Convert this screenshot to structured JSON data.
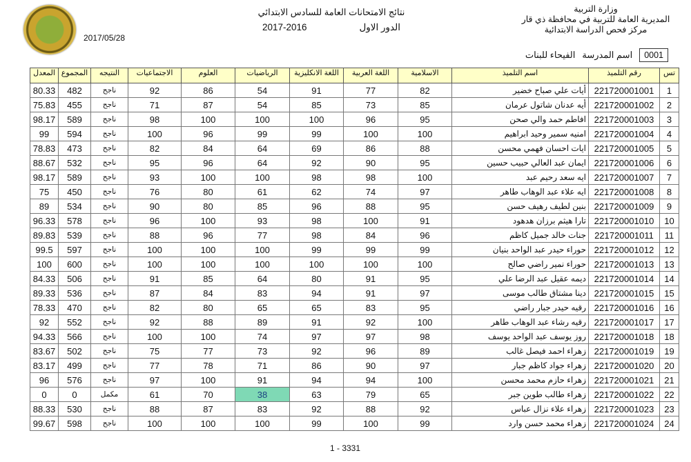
{
  "header": {
    "ministry_lines": [
      "وزارة التربية",
      "المديرية العامة للتربية في محافظة ذي قار",
      "مركز فحص الدراسة الابتدائية"
    ],
    "title": "نتائج الامتحانات  العامة للسادس الابتدائي",
    "round": "الدور الاول",
    "year": "2017-2016",
    "date": "2017/05/28",
    "school_code": "0001",
    "school_label": "اسم المدرسة",
    "school_name": "الفيحاء للبنات"
  },
  "columns": [
    "تس",
    "رقم التلميذ",
    "اسم التلميذ",
    "الاسلامية",
    "اللغة العربية",
    "اللغة الانكليزية",
    "الرياضيات",
    "العلوم",
    "الاجتماعيات",
    "النتيجه",
    "المجموع",
    "المعدل"
  ],
  "highlight_color": "#7fd9b5",
  "rows": [
    [
      "1",
      "221720001001",
      "أيات علي صباح خضير",
      "82",
      "77",
      "91",
      "54",
      "86",
      "92",
      "ناجح",
      "482",
      "80.33"
    ],
    [
      "2",
      "221720001002",
      "أيه عدنان شاتول عرمان",
      "85",
      "73",
      "85",
      "54",
      "87",
      "71",
      "ناجح",
      "455",
      "75.83"
    ],
    [
      "3",
      "221720001003",
      "افاطم حمد والي صحن",
      "95",
      "96",
      "100",
      "100",
      "100",
      "98",
      "ناجح",
      "589",
      "98.17"
    ],
    [
      "4",
      "221720001004",
      "امنيه سمير وحيد ابراهيم",
      "100",
      "100",
      "99",
      "99",
      "96",
      "100",
      "ناجح",
      "594",
      "99"
    ],
    [
      "5",
      "221720001005",
      "ايات احسان فهمي محسن",
      "88",
      "86",
      "69",
      "64",
      "84",
      "82",
      "ناجح",
      "473",
      "78.83"
    ],
    [
      "6",
      "221720001006",
      "ايمان عبد العالي حبيب حسين",
      "95",
      "90",
      "92",
      "64",
      "96",
      "95",
      "ناجح",
      "532",
      "88.67"
    ],
    [
      "7",
      "221720001007",
      "ايه سعد رحيم عبد",
      "100",
      "98",
      "98",
      "100",
      "100",
      "93",
      "ناجح",
      "589",
      "98.17"
    ],
    [
      "8",
      "221720001008",
      "ايه علاء  عبد الوهاب طاهر",
      "97",
      "74",
      "62",
      "61",
      "80",
      "76",
      "ناجح",
      "450",
      "75"
    ],
    [
      "9",
      "221720001009",
      "بنين لطيف رهيف حسن",
      "95",
      "88",
      "96",
      "85",
      "80",
      "90",
      "ناجح",
      "534",
      "89"
    ],
    [
      "10",
      "221720001010",
      "تارا هيثم برزان هدهود",
      "91",
      "100",
      "98",
      "93",
      "100",
      "96",
      "ناجح",
      "578",
      "96.33"
    ],
    [
      "11",
      "221720001011",
      "جنات خالد جميل كاظم",
      "96",
      "84",
      "98",
      "77",
      "96",
      "88",
      "ناجح",
      "539",
      "89.83"
    ],
    [
      "12",
      "221720001012",
      "حوراء حيدر عبد الواحد بنيان",
      "99",
      "99",
      "99",
      "100",
      "100",
      "100",
      "ناجح",
      "597",
      "99.5"
    ],
    [
      "13",
      "221720001013",
      "حوراء نمير راضي صالح",
      "100",
      "100",
      "100",
      "100",
      "100",
      "100",
      "ناجح",
      "600",
      "100"
    ],
    [
      "14",
      "221720001014",
      "ديمه عقيل عبد الرضا علي",
      "95",
      "91",
      "80",
      "64",
      "85",
      "91",
      "ناجح",
      "506",
      "84.33"
    ],
    [
      "15",
      "221720001015",
      "دينا مشتاق طالب موسى",
      "97",
      "91",
      "94",
      "83",
      "84",
      "87",
      "ناجح",
      "536",
      "89.33"
    ],
    [
      "16",
      "221720001016",
      "رقيه حيدر جبار راضي",
      "95",
      "83",
      "65",
      "65",
      "80",
      "82",
      "ناجح",
      "470",
      "78.33"
    ],
    [
      "17",
      "221720001017",
      "رقيه رشاء عبد الوهاب طاهر",
      "100",
      "92",
      "91",
      "89",
      "88",
      "92",
      "ناجح",
      "552",
      "92"
    ],
    [
      "18",
      "221720001018",
      "روز يوسف عبد الواحد يوسف",
      "98",
      "97",
      "97",
      "74",
      "100",
      "100",
      "ناجح",
      "566",
      "94.33"
    ],
    [
      "19",
      "221720001019",
      "زهراء احمد فيصل غالب",
      "89",
      "96",
      "92",
      "73",
      "77",
      "75",
      "ناجح",
      "502",
      "83.67"
    ],
    [
      "20",
      "221720001020",
      "زهراء جواد كاظم جبار",
      "97",
      "90",
      "86",
      "71",
      "78",
      "77",
      "ناجح",
      "499",
      "83.17"
    ],
    [
      "21",
      "221720001021",
      "زهراء حازم محمد محسن",
      "100",
      "94",
      "94",
      "91",
      "100",
      "97",
      "ناجح",
      "576",
      "96"
    ],
    [
      "22",
      "221720001022",
      "زهراء طالب طوين جبر",
      "65",
      "79",
      "63",
      "38",
      "70",
      "61",
      "مكمل",
      "0",
      "0"
    ],
    [
      "23",
      "221720001023",
      "زهراء علاء  نزال عباس",
      "92",
      "88",
      "92",
      "83",
      "87",
      "88",
      "ناجح",
      "530",
      "88.33"
    ],
    [
      "24",
      "221720001024",
      "زهراء محمد حسن وارد",
      "99",
      "100",
      "99",
      "100",
      "100",
      "100",
      "ناجح",
      "598",
      "99.67"
    ]
  ],
  "highlighted_cell": {
    "row": 22,
    "column": "الرياضيات"
  },
  "footer": {
    "page": "1 - 3331"
  }
}
